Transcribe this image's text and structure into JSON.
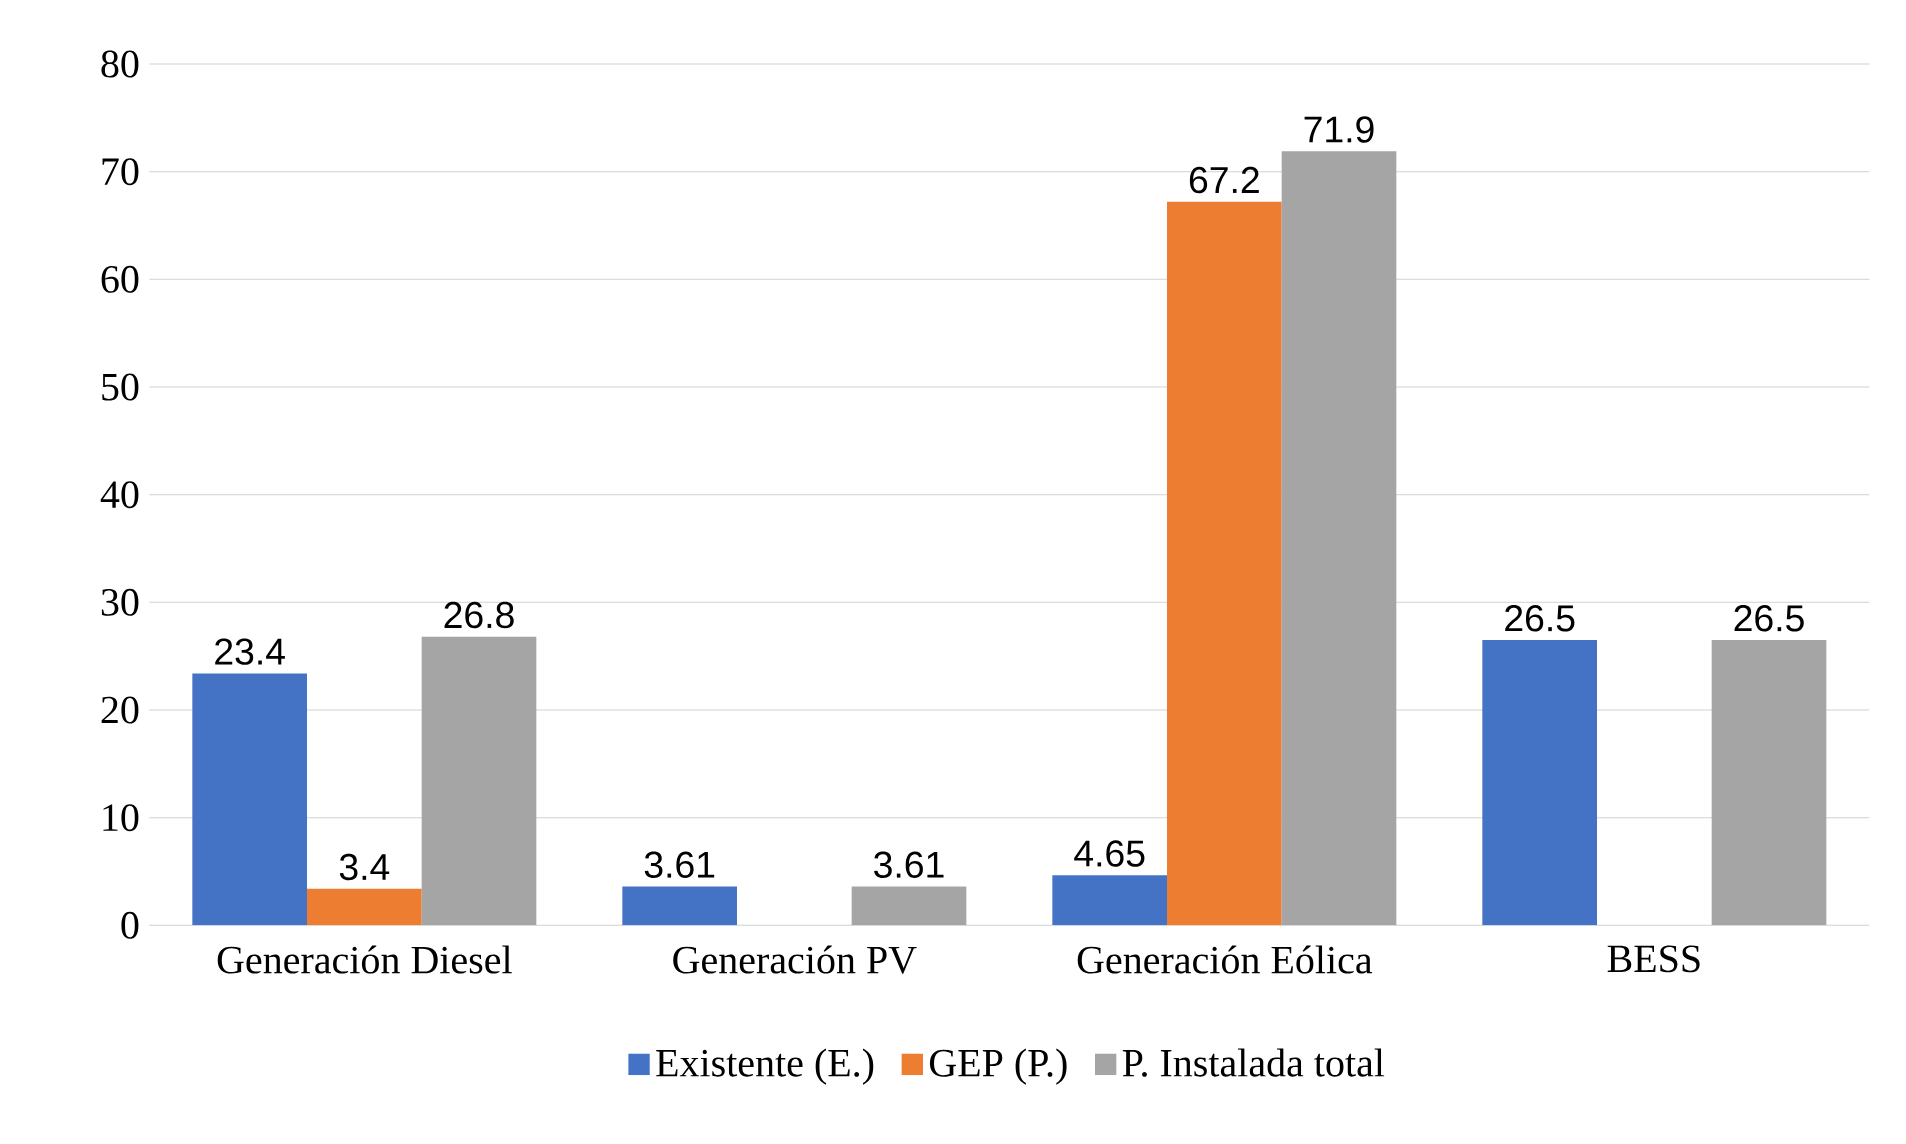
{
  "chart_data": {
    "type": "bar",
    "categories": [
      "Generación Diesel",
      "Generación PV",
      "Generación Eólica",
      "BESS"
    ],
    "series": [
      {
        "name": "Existente (E.)",
        "color": "#4472c4",
        "values": [
          23.4,
          3.61,
          4.65,
          26.5
        ]
      },
      {
        "name": "GEP (P.)",
        "color": "#ed7d31",
        "values": [
          3.4,
          null,
          67.2,
          null
        ]
      },
      {
        "name": "P. Instalada total",
        "color": "#a5a5a5",
        "values": [
          26.8,
          3.61,
          71.9,
          26.5
        ]
      }
    ],
    "ylim": [
      0,
      80
    ],
    "yticks": [
      0,
      10,
      20,
      30,
      40,
      50,
      60,
      70,
      80
    ],
    "grid": "y",
    "legend": "bottom",
    "data_labels": true
  }
}
